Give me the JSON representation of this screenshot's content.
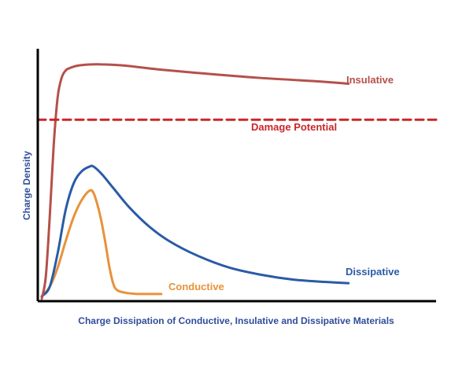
{
  "chart_data": {
    "type": "line",
    "title": "",
    "xlabel": "Charge Dissipation of Conductive, Insulative and Dissipative Materials",
    "ylabel": "Charge Density",
    "xlim": [
      0,
      100
    ],
    "ylim": [
      0,
      100
    ],
    "grid": false,
    "legend": "inline labels at series ends",
    "colors": {
      "axis": "#000000",
      "axis_title": "#2f4d9a",
      "insulative": "#b5504a",
      "damage": "#c9272b",
      "dissipative": "#2a5ba6",
      "conductive": "#e8923a"
    },
    "series": [
      {
        "name": "Insulative",
        "key": "insulative",
        "x": [
          1,
          2,
          3,
          4,
          5,
          6,
          7,
          8,
          10,
          13,
          17,
          22,
          30,
          40,
          55,
          70,
          78
        ],
        "y": [
          1,
          10,
          35,
          65,
          85,
          93,
          96,
          97,
          98,
          98.5,
          98.5,
          98,
          96.5,
          95,
          93,
          91.5,
          90.5
        ]
      },
      {
        "name": "Damage Potential",
        "key": "damage",
        "style": "dashed",
        "x": [
          0,
          100
        ],
        "y": [
          75.5,
          75.5
        ]
      },
      {
        "name": "Dissipative",
        "key": "dissipative",
        "x": [
          1,
          3,
          5,
          7,
          9,
          11,
          13,
          14,
          16,
          19,
          23,
          28,
          33,
          40,
          48,
          56,
          64,
          72,
          78
        ],
        "y": [
          2,
          6,
          20,
          38,
          49,
          54,
          56,
          56,
          53,
          47,
          39,
          31,
          25,
          19,
          14,
          11,
          9,
          8,
          7.5
        ]
      },
      {
        "name": "Conductive",
        "key": "conductive",
        "x": [
          1,
          3,
          5,
          7,
          9,
          11,
          13,
          14,
          15,
          16,
          17,
          18,
          19,
          20,
          22,
          25,
          28,
          31
        ],
        "y": [
          2,
          6,
          14,
          25,
          35,
          42,
          46,
          45,
          40,
          33,
          24,
          14,
          7,
          4.5,
          3.5,
          3,
          3,
          3
        ]
      }
    ],
    "labels": {
      "insulative": "Insulative",
      "damage": "Damage Potential",
      "dissipative": "Dissipative",
      "conductive": "Conductive"
    }
  }
}
